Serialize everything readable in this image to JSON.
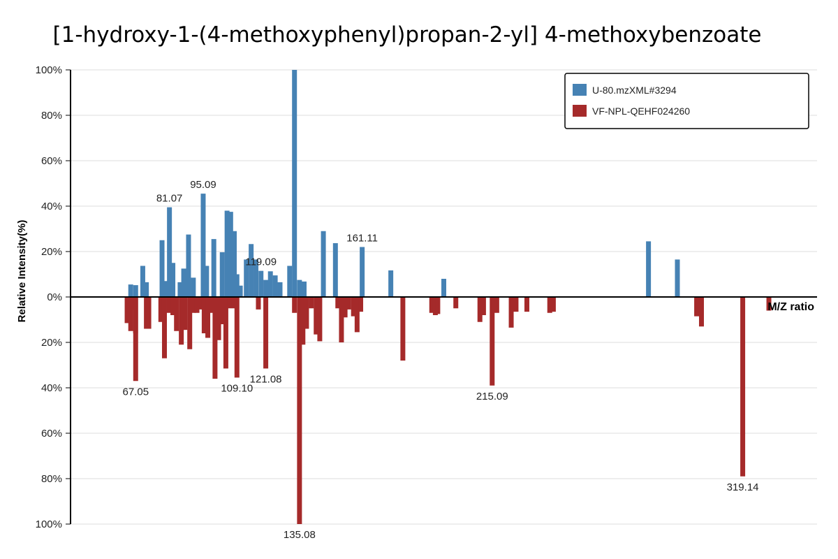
{
  "chart_data": {
    "type": "bar",
    "title": "[1-hydroxy-1-(4-methoxyphenyl)propan-2-yl]  4-methoxybenzoate",
    "xlabel": "M/Z ratio",
    "ylabel": "Relative Intensity(%)",
    "ylim": [
      -100,
      100
    ],
    "xlim": [
      40,
      350
    ],
    "y_ticks": [
      "100%",
      "80%",
      "60%",
      "40%",
      "20%",
      "0%",
      "20%",
      "40%",
      "60%",
      "80%",
      "100%"
    ],
    "legend_position": "top-right",
    "grid": true,
    "series": [
      {
        "name": "U-80.mzXML#3294",
        "color": "#4682b4",
        "direction": "up",
        "points": [
          {
            "mz": 65.0,
            "y": 5.5
          },
          {
            "mz": 67.05,
            "y": 5.2
          },
          {
            "mz": 70.0,
            "y": 13.7
          },
          {
            "mz": 71.5,
            "y": 6.5
          },
          {
            "mz": 78.0,
            "y": 25.0
          },
          {
            "mz": 79.5,
            "y": 7.0
          },
          {
            "mz": 81.07,
            "y": 39.5,
            "label": "81.07"
          },
          {
            "mz": 82.5,
            "y": 15.0
          },
          {
            "mz": 85.5,
            "y": 6.5
          },
          {
            "mz": 87.0,
            "y": 12.5
          },
          {
            "mz": 89.0,
            "y": 27.5
          },
          {
            "mz": 91.0,
            "y": 8.5
          },
          {
            "mz": 95.09,
            "y": 45.5,
            "label": "95.09"
          },
          {
            "mz": 96.5,
            "y": 13.7
          },
          {
            "mz": 99.5,
            "y": 25.5
          },
          {
            "mz": 103.0,
            "y": 19.7
          },
          {
            "mz": 105.0,
            "y": 38.0
          },
          {
            "mz": 106.5,
            "y": 37.5
          },
          {
            "mz": 108.0,
            "y": 29.0
          },
          {
            "mz": 109.1,
            "y": 10.0
          },
          {
            "mz": 110.5,
            "y": 5.0
          },
          {
            "mz": 113.0,
            "y": 16.5
          },
          {
            "mz": 115.0,
            "y": 23.3
          },
          {
            "mz": 117.0,
            "y": 16.5
          },
          {
            "mz": 119.09,
            "y": 11.5,
            "label": "119.09"
          },
          {
            "mz": 121.08,
            "y": 7.5
          },
          {
            "mz": 123.0,
            "y": 11.3
          },
          {
            "mz": 125.0,
            "y": 9.5
          },
          {
            "mz": 127.0,
            "y": 6.5
          },
          {
            "mz": 131.0,
            "y": 13.7
          },
          {
            "mz": 133.0,
            "y": 100.0
          },
          {
            "mz": 135.08,
            "y": 7.5
          },
          {
            "mz": 137.0,
            "y": 6.8
          },
          {
            "mz": 145.0,
            "y": 29.0
          },
          {
            "mz": 150.0,
            "y": 23.7
          },
          {
            "mz": 161.11,
            "y": 22.0,
            "label": "161.11"
          },
          {
            "mz": 173.0,
            "y": 11.7
          },
          {
            "mz": 195.0,
            "y": 8.0
          },
          {
            "mz": 280.0,
            "y": 24.5
          },
          {
            "mz": 292.0,
            "y": 16.5
          }
        ]
      },
      {
        "name": "VF-NPL-QEHF024260",
        "color": "#a52a2a",
        "direction": "down",
        "points": [
          {
            "mz": 63.5,
            "y": 11.5
          },
          {
            "mz": 65.0,
            "y": 15.0
          },
          {
            "mz": 66.0,
            "y": 5.5
          },
          {
            "mz": 67.0,
            "y": 16.0
          },
          {
            "mz": 67.05,
            "y": 37.0,
            "label": "67.05"
          },
          {
            "mz": 71.5,
            "y": 14.0
          },
          {
            "mz": 72.5,
            "y": 14.0
          },
          {
            "mz": 77.5,
            "y": 11.0
          },
          {
            "mz": 79.0,
            "y": 27.0
          },
          {
            "mz": 81.0,
            "y": 7.0
          },
          {
            "mz": 82.5,
            "y": 8.0
          },
          {
            "mz": 84.0,
            "y": 15.0
          },
          {
            "mz": 86.0,
            "y": 21.0
          },
          {
            "mz": 87.5,
            "y": 14.5
          },
          {
            "mz": 89.5,
            "y": 23.0
          },
          {
            "mz": 91.0,
            "y": 7.0
          },
          {
            "mz": 92.5,
            "y": 7.0
          },
          {
            "mz": 94.0,
            "y": 5.5
          },
          {
            "mz": 95.5,
            "y": 16.0
          },
          {
            "mz": 97.0,
            "y": 18.0
          },
          {
            "mz": 98.5,
            "y": 7.0
          },
          {
            "mz": 100.0,
            "y": 36.0
          },
          {
            "mz": 101.5,
            "y": 19.0
          },
          {
            "mz": 103.0,
            "y": 12.0
          },
          {
            "mz": 104.5,
            "y": 31.5
          },
          {
            "mz": 106.0,
            "y": 5.0
          },
          {
            "mz": 108.0,
            "y": 5.0
          },
          {
            "mz": 109.1,
            "y": 35.5,
            "label": "109.10"
          },
          {
            "mz": 121.08,
            "y": 31.5,
            "label": "121.08"
          },
          {
            "mz": 118.0,
            "y": 5.5
          },
          {
            "mz": 133.0,
            "y": 7.0
          },
          {
            "mz": 135.08,
            "y": 100.0,
            "label": "135.08"
          },
          {
            "mz": 136.5,
            "y": 21.0
          },
          {
            "mz": 138.0,
            "y": 14.0
          },
          {
            "mz": 140.0,
            "y": 5.0
          },
          {
            "mz": 142.0,
            "y": 16.5
          },
          {
            "mz": 143.5,
            "y": 19.5
          },
          {
            "mz": 151.0,
            "y": 5.0
          },
          {
            "mz": 152.5,
            "y": 20.0
          },
          {
            "mz": 154.0,
            "y": 9.0
          },
          {
            "mz": 155.5,
            "y": 5.5
          },
          {
            "mz": 157.5,
            "y": 8.5
          },
          {
            "mz": 159.0,
            "y": 15.5
          },
          {
            "mz": 160.5,
            "y": 6.5
          },
          {
            "mz": 178.0,
            "y": 28.0
          },
          {
            "mz": 190.0,
            "y": 7.0
          },
          {
            "mz": 191.5,
            "y": 8.0
          },
          {
            "mz": 192.5,
            "y": 7.5
          },
          {
            "mz": 215.09,
            "y": 39.0,
            "label": "215.09"
          },
          {
            "mz": 200.0,
            "y": 5.0
          },
          {
            "mz": 210.0,
            "y": 11.0
          },
          {
            "mz": 211.5,
            "y": 8.0
          },
          {
            "mz": 217.0,
            "y": 7.0
          },
          {
            "mz": 223.0,
            "y": 13.5
          },
          {
            "mz": 225.0,
            "y": 6.5
          },
          {
            "mz": 229.5,
            "y": 6.5
          },
          {
            "mz": 239.0,
            "y": 7.0
          },
          {
            "mz": 240.5,
            "y": 6.5
          },
          {
            "mz": 300.0,
            "y": 8.5
          },
          {
            "mz": 302.0,
            "y": 13.0
          },
          {
            "mz": 319.14,
            "y": 79.0,
            "label": "319.14"
          },
          {
            "mz": 330.0,
            "y": 6.0
          }
        ]
      }
    ]
  }
}
